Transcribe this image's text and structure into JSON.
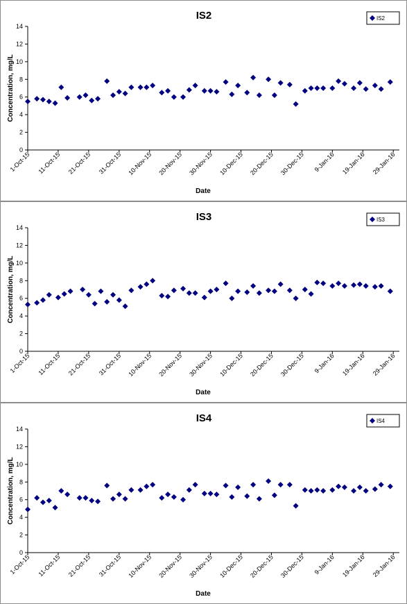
{
  "colors": {
    "marker": "#000080",
    "axis": "#000000",
    "border": "#8c8c8c"
  },
  "chart_data": [
    {
      "type": "scatter",
      "title": "IS2",
      "xlabel": "Date",
      "ylabel": "Concentration, mg/L",
      "ylim": [
        0,
        14
      ],
      "yticks": [
        0,
        2,
        4,
        6,
        8,
        10,
        12,
        14
      ],
      "xlim": [
        "2015-10-01",
        "2016-01-31"
      ],
      "xticks": [
        {
          "date": "2015-10-01",
          "label": "1-Oct-15"
        },
        {
          "date": "2015-10-11",
          "label": "11-Oct-15"
        },
        {
          "date": "2015-10-21",
          "label": "21-Oct-15"
        },
        {
          "date": "2015-10-31",
          "label": "31-Oct-15"
        },
        {
          "date": "2015-11-10",
          "label": "10-Nov-15"
        },
        {
          "date": "2015-11-20",
          "label": "20-Nov-15"
        },
        {
          "date": "2015-11-30",
          "label": "30-Nov-15"
        },
        {
          "date": "2015-12-10",
          "label": "10-Dec-15"
        },
        {
          "date": "2015-12-20",
          "label": "20-Dec-15"
        },
        {
          "date": "2015-12-30",
          "label": "30-Dec-15"
        },
        {
          "date": "2016-01-09",
          "label": "9-Jan-16"
        },
        {
          "date": "2016-01-19",
          "label": "19-Jan-16"
        },
        {
          "date": "2016-01-29",
          "label": "29-Jan-16"
        }
      ],
      "legend_position": "top-right",
      "grid": false,
      "series": [
        {
          "name": "IS2",
          "points": [
            {
              "x": "2015-10-01",
              "y": 5.5
            },
            {
              "x": "2015-10-04",
              "y": 5.8
            },
            {
              "x": "2015-10-06",
              "y": 5.7
            },
            {
              "x": "2015-10-08",
              "y": 5.5
            },
            {
              "x": "2015-10-10",
              "y": 5.3
            },
            {
              "x": "2015-10-12",
              "y": 7.1
            },
            {
              "x": "2015-10-14",
              "y": 5.9
            },
            {
              "x": "2015-10-18",
              "y": 6.0
            },
            {
              "x": "2015-10-20",
              "y": 6.2
            },
            {
              "x": "2015-10-22",
              "y": 5.6
            },
            {
              "x": "2015-10-24",
              "y": 5.8
            },
            {
              "x": "2015-10-27",
              "y": 7.8
            },
            {
              "x": "2015-10-29",
              "y": 6.2
            },
            {
              "x": "2015-10-31",
              "y": 6.6
            },
            {
              "x": "2015-11-02",
              "y": 6.4
            },
            {
              "x": "2015-11-04",
              "y": 7.1
            },
            {
              "x": "2015-11-07",
              "y": 7.1
            },
            {
              "x": "2015-11-09",
              "y": 7.1
            },
            {
              "x": "2015-11-11",
              "y": 7.3
            },
            {
              "x": "2015-11-14",
              "y": 6.5
            },
            {
              "x": "2015-11-16",
              "y": 6.7
            },
            {
              "x": "2015-11-18",
              "y": 6.0
            },
            {
              "x": "2015-11-21",
              "y": 6.0
            },
            {
              "x": "2015-11-23",
              "y": 6.8
            },
            {
              "x": "2015-11-25",
              "y": 7.3
            },
            {
              "x": "2015-11-28",
              "y": 6.7
            },
            {
              "x": "2015-11-30",
              "y": 6.7
            },
            {
              "x": "2015-12-02",
              "y": 6.6
            },
            {
              "x": "2015-12-05",
              "y": 7.7
            },
            {
              "x": "2015-12-07",
              "y": 6.3
            },
            {
              "x": "2015-12-09",
              "y": 7.3
            },
            {
              "x": "2015-12-12",
              "y": 6.5
            },
            {
              "x": "2015-12-14",
              "y": 8.2
            },
            {
              "x": "2015-12-16",
              "y": 6.2
            },
            {
              "x": "2015-12-19",
              "y": 8.0
            },
            {
              "x": "2015-12-21",
              "y": 6.2
            },
            {
              "x": "2015-12-23",
              "y": 7.6
            },
            {
              "x": "2015-12-26",
              "y": 7.4
            },
            {
              "x": "2015-12-28",
              "y": 5.2
            },
            {
              "x": "2015-12-31",
              "y": 6.7
            },
            {
              "x": "2016-01-02",
              "y": 7.0
            },
            {
              "x": "2016-01-04",
              "y": 7.0
            },
            {
              "x": "2016-01-06",
              "y": 7.0
            },
            {
              "x": "2016-01-09",
              "y": 7.0
            },
            {
              "x": "2016-01-11",
              "y": 7.8
            },
            {
              "x": "2016-01-13",
              "y": 7.5
            },
            {
              "x": "2016-01-16",
              "y": 7.0
            },
            {
              "x": "2016-01-18",
              "y": 7.6
            },
            {
              "x": "2016-01-20",
              "y": 6.9
            },
            {
              "x": "2016-01-23",
              "y": 7.3
            },
            {
              "x": "2016-01-25",
              "y": 6.9
            },
            {
              "x": "2016-01-28",
              "y": 7.7
            }
          ]
        }
      ]
    },
    {
      "type": "scatter",
      "title": "IS3",
      "xlabel": "Date",
      "ylabel": "Concentration, mg/L",
      "ylim": [
        0,
        14
      ],
      "yticks": [
        0,
        2,
        4,
        6,
        8,
        10,
        12,
        14
      ],
      "xlim": [
        "2015-10-01",
        "2016-01-31"
      ],
      "xticks": [
        {
          "date": "2015-10-01",
          "label": "1-Oct-15"
        },
        {
          "date": "2015-10-11",
          "label": "11-Oct-15"
        },
        {
          "date": "2015-10-21",
          "label": "21-Oct-15"
        },
        {
          "date": "2015-10-31",
          "label": "31-Oct-15"
        },
        {
          "date": "2015-11-10",
          "label": "10-Nov-15"
        },
        {
          "date": "2015-11-20",
          "label": "20-Nov-15"
        },
        {
          "date": "2015-11-30",
          "label": "30-Nov-15"
        },
        {
          "date": "2015-12-10",
          "label": "10-Dec-15"
        },
        {
          "date": "2015-12-20",
          "label": "20-Dec-15"
        },
        {
          "date": "2015-12-30",
          "label": "30-Dec-15"
        },
        {
          "date": "2016-01-09",
          "label": "9-Jan-16"
        },
        {
          "date": "2016-01-19",
          "label": "19-Jan-16"
        },
        {
          "date": "2016-01-29",
          "label": "29-Jan-16"
        }
      ],
      "legend_position": "top-right",
      "grid": false,
      "series": [
        {
          "name": "IS3",
          "points": [
            {
              "x": "2015-10-01",
              "y": 5.3
            },
            {
              "x": "2015-10-04",
              "y": 5.5
            },
            {
              "x": "2015-10-06",
              "y": 5.8
            },
            {
              "x": "2015-10-08",
              "y": 6.4
            },
            {
              "x": "2015-10-11",
              "y": 6.1
            },
            {
              "x": "2015-10-13",
              "y": 6.5
            },
            {
              "x": "2015-10-15",
              "y": 6.8
            },
            {
              "x": "2015-10-19",
              "y": 7.0
            },
            {
              "x": "2015-10-21",
              "y": 6.4
            },
            {
              "x": "2015-10-23",
              "y": 5.4
            },
            {
              "x": "2015-10-25",
              "y": 6.8
            },
            {
              "x": "2015-10-27",
              "y": 5.6
            },
            {
              "x": "2015-10-29",
              "y": 6.4
            },
            {
              "x": "2015-10-31",
              "y": 5.8
            },
            {
              "x": "2015-11-02",
              "y": 5.1
            },
            {
              "x": "2015-11-04",
              "y": 6.9
            },
            {
              "x": "2015-11-07",
              "y": 7.3
            },
            {
              "x": "2015-11-09",
              "y": 7.6
            },
            {
              "x": "2015-11-11",
              "y": 8.0
            },
            {
              "x": "2015-11-14",
              "y": 6.3
            },
            {
              "x": "2015-11-16",
              "y": 6.2
            },
            {
              "x": "2015-11-18",
              "y": 6.9
            },
            {
              "x": "2015-11-21",
              "y": 7.1
            },
            {
              "x": "2015-11-23",
              "y": 6.6
            },
            {
              "x": "2015-11-25",
              "y": 6.6
            },
            {
              "x": "2015-11-28",
              "y": 6.1
            },
            {
              "x": "2015-11-30",
              "y": 6.8
            },
            {
              "x": "2015-12-02",
              "y": 7.0
            },
            {
              "x": "2015-12-05",
              "y": 7.7
            },
            {
              "x": "2015-12-07",
              "y": 6.0
            },
            {
              "x": "2015-12-09",
              "y": 6.8
            },
            {
              "x": "2015-12-12",
              "y": 6.7
            },
            {
              "x": "2015-12-14",
              "y": 7.4
            },
            {
              "x": "2015-12-16",
              "y": 6.6
            },
            {
              "x": "2015-12-19",
              "y": 6.9
            },
            {
              "x": "2015-12-21",
              "y": 6.8
            },
            {
              "x": "2015-12-23",
              "y": 7.6
            },
            {
              "x": "2015-12-26",
              "y": 6.9
            },
            {
              "x": "2015-12-28",
              "y": 6.0
            },
            {
              "x": "2015-12-31",
              "y": 7.0
            },
            {
              "x": "2016-01-02",
              "y": 6.5
            },
            {
              "x": "2016-01-04",
              "y": 7.8
            },
            {
              "x": "2016-01-06",
              "y": 7.7
            },
            {
              "x": "2016-01-09",
              "y": 7.4
            },
            {
              "x": "2016-01-11",
              "y": 7.7
            },
            {
              "x": "2016-01-13",
              "y": 7.4
            },
            {
              "x": "2016-01-16",
              "y": 7.5
            },
            {
              "x": "2016-01-18",
              "y": 7.6
            },
            {
              "x": "2016-01-20",
              "y": 7.4
            },
            {
              "x": "2016-01-23",
              "y": 7.3
            },
            {
              "x": "2016-01-25",
              "y": 7.4
            },
            {
              "x": "2016-01-28",
              "y": 6.8
            }
          ]
        }
      ]
    },
    {
      "type": "scatter",
      "title": "IS4",
      "xlabel": "Date",
      "ylabel": "Concentration, mg/L",
      "ylim": [
        0,
        14
      ],
      "yticks": [
        0,
        2,
        4,
        6,
        8,
        10,
        12,
        14
      ],
      "xlim": [
        "2015-10-01",
        "2016-01-31"
      ],
      "xticks": [
        {
          "date": "2015-10-01",
          "label": "1-Oct-15"
        },
        {
          "date": "2015-10-11",
          "label": "11-Oct-15"
        },
        {
          "date": "2015-10-21",
          "label": "21-Oct-15"
        },
        {
          "date": "2015-10-31",
          "label": "31-Oct-15"
        },
        {
          "date": "2015-11-10",
          "label": "10-Nov-15"
        },
        {
          "date": "2015-11-20",
          "label": "20-Nov-15"
        },
        {
          "date": "2015-11-30",
          "label": "30-Nov-15"
        },
        {
          "date": "2015-12-10",
          "label": "10-Dec-15"
        },
        {
          "date": "2015-12-20",
          "label": "20-Dec-15"
        },
        {
          "date": "2015-12-30",
          "label": "30-Dec-15"
        },
        {
          "date": "2016-01-09",
          "label": "9-Jan-16"
        },
        {
          "date": "2016-01-19",
          "label": "19-Jan-16"
        },
        {
          "date": "2016-01-29",
          "label": "29-Jan-16"
        }
      ],
      "legend_position": "top-right",
      "grid": false,
      "series": [
        {
          "name": "IS4",
          "points": [
            {
              "x": "2015-10-01",
              "y": 4.9
            },
            {
              "x": "2015-10-04",
              "y": 6.2
            },
            {
              "x": "2015-10-06",
              "y": 5.7
            },
            {
              "x": "2015-10-08",
              "y": 5.9
            },
            {
              "x": "2015-10-10",
              "y": 5.1
            },
            {
              "x": "2015-10-12",
              "y": 7.0
            },
            {
              "x": "2015-10-14",
              "y": 6.6
            },
            {
              "x": "2015-10-18",
              "y": 6.2
            },
            {
              "x": "2015-10-20",
              "y": 6.2
            },
            {
              "x": "2015-10-22",
              "y": 5.9
            },
            {
              "x": "2015-10-24",
              "y": 5.8
            },
            {
              "x": "2015-10-27",
              "y": 7.6
            },
            {
              "x": "2015-10-29",
              "y": 6.1
            },
            {
              "x": "2015-10-31",
              "y": 6.6
            },
            {
              "x": "2015-11-02",
              "y": 6.1
            },
            {
              "x": "2015-11-04",
              "y": 7.1
            },
            {
              "x": "2015-11-07",
              "y": 7.1
            },
            {
              "x": "2015-11-09",
              "y": 7.5
            },
            {
              "x": "2015-11-11",
              "y": 7.7
            },
            {
              "x": "2015-11-14",
              "y": 6.2
            },
            {
              "x": "2015-11-16",
              "y": 6.6
            },
            {
              "x": "2015-11-18",
              "y": 6.3
            },
            {
              "x": "2015-11-21",
              "y": 6.0
            },
            {
              "x": "2015-11-23",
              "y": 7.1
            },
            {
              "x": "2015-11-25",
              "y": 7.7
            },
            {
              "x": "2015-11-28",
              "y": 6.7
            },
            {
              "x": "2015-11-30",
              "y": 6.7
            },
            {
              "x": "2015-12-02",
              "y": 6.6
            },
            {
              "x": "2015-12-05",
              "y": 7.6
            },
            {
              "x": "2015-12-07",
              "y": 6.3
            },
            {
              "x": "2015-12-09",
              "y": 7.4
            },
            {
              "x": "2015-12-12",
              "y": 6.4
            },
            {
              "x": "2015-12-14",
              "y": 7.7
            },
            {
              "x": "2015-12-16",
              "y": 6.1
            },
            {
              "x": "2015-12-19",
              "y": 8.1
            },
            {
              "x": "2015-12-21",
              "y": 6.5
            },
            {
              "x": "2015-12-23",
              "y": 7.7
            },
            {
              "x": "2015-12-26",
              "y": 7.7
            },
            {
              "x": "2015-12-28",
              "y": 5.3
            },
            {
              "x": "2015-12-31",
              "y": 7.1
            },
            {
              "x": "2016-01-02",
              "y": 7.0
            },
            {
              "x": "2016-01-04",
              "y": 7.1
            },
            {
              "x": "2016-01-06",
              "y": 7.0
            },
            {
              "x": "2016-01-09",
              "y": 7.1
            },
            {
              "x": "2016-01-11",
              "y": 7.5
            },
            {
              "x": "2016-01-13",
              "y": 7.4
            },
            {
              "x": "2016-01-16",
              "y": 7.0
            },
            {
              "x": "2016-01-18",
              "y": 7.4
            },
            {
              "x": "2016-01-20",
              "y": 7.0
            },
            {
              "x": "2016-01-23",
              "y": 7.2
            },
            {
              "x": "2016-01-25",
              "y": 7.7
            },
            {
              "x": "2016-01-28",
              "y": 7.5
            }
          ]
        }
      ]
    }
  ]
}
